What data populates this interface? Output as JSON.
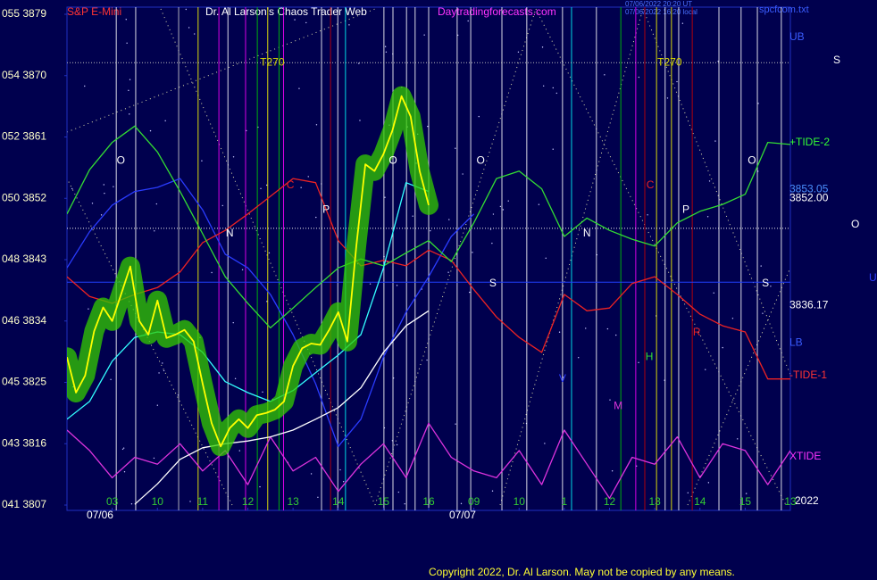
{
  "chart_data": {
    "type": "line",
    "symbol": "S&P E-Mini",
    "title": "Dr. Al Larson's Chaos Trader Web",
    "site": "Daytradingforecasts.com",
    "timestamps": [
      "07/06/2022 20:20 UT",
      "07/06/2022 16:20 local"
    ],
    "file": "spcfcom.txt",
    "copyright": "Copyright 2022, Dr. Al Larson. May not be copied by any means.",
    "year_label": "2022",
    "xlim": [
      0,
      16
    ],
    "ylim": [
      3807,
      3879
    ],
    "yticks": [
      {
        "value": 3879,
        "label": "055 3879"
      },
      {
        "value": 3870,
        "label": "054 3870"
      },
      {
        "value": 3861,
        "label": "052 3861"
      },
      {
        "value": 3852,
        "label": "050 3852"
      },
      {
        "value": 3843,
        "label": "048 3843"
      },
      {
        "value": 3834,
        "label": "046 3834"
      },
      {
        "value": 3825,
        "label": "045 3825"
      },
      {
        "value": 3816,
        "label": "043 3816"
      },
      {
        "value": 3807,
        "label": "041 3807"
      }
    ],
    "xticks": [
      {
        "value": 1,
        "label": "03"
      },
      {
        "value": 2,
        "label": "10"
      },
      {
        "value": 3,
        "label": "11"
      },
      {
        "value": 4,
        "label": "12"
      },
      {
        "value": 5,
        "label": "13"
      },
      {
        "value": 6,
        "label": "14"
      },
      {
        "value": 7,
        "label": "15"
      },
      {
        "value": 8,
        "label": "16"
      },
      {
        "value": 9,
        "label": "09"
      },
      {
        "value": 10,
        "label": "10"
      },
      {
        "value": 11,
        "label": "1"
      },
      {
        "value": 12,
        "label": "12"
      },
      {
        "value": 13,
        "label": "13"
      },
      {
        "value": 14,
        "label": "14"
      },
      {
        "value": 15,
        "label": "15"
      },
      {
        "value": 16,
        "label": "13"
      }
    ],
    "dates": [
      {
        "text": "07/06",
        "x": 0.73
      },
      {
        "text": "07/07",
        "x": 8.75
      }
    ],
    "vlines": [
      {
        "x": 1.09,
        "color": "#ffffff"
      },
      {
        "x": 1.52,
        "color": "#ffffff"
      },
      {
        "x": 2.47,
        "color": "#cccccc"
      },
      {
        "x": 2.9,
        "color": "#ffff00"
      },
      {
        "x": 3.36,
        "color": "#ff00ff"
      },
      {
        "x": 3.56,
        "color": "#ffffff"
      },
      {
        "x": 3.95,
        "color": "#ff00ff"
      },
      {
        "x": 4.21,
        "color": "#00cc00"
      },
      {
        "x": 4.44,
        "color": "#ffff00"
      },
      {
        "x": 4.69,
        "color": "#00cc00"
      },
      {
        "x": 4.79,
        "color": "#ff00ff"
      },
      {
        "x": 5.63,
        "color": "#ffffff"
      },
      {
        "x": 5.83,
        "color": "#cc0000"
      },
      {
        "x": 5.99,
        "color": "#ffffff"
      },
      {
        "x": 6.16,
        "color": "#00ffff"
      },
      {
        "x": 7.01,
        "color": "#ffffff"
      },
      {
        "x": 7.21,
        "color": "#ffffff"
      },
      {
        "x": 7.51,
        "color": "#ffffff"
      },
      {
        "x": 7.7,
        "color": "#ffffff"
      },
      {
        "x": 8.0,
        "color": "#ffffff"
      },
      {
        "x": 8.63,
        "color": "#ffffff"
      },
      {
        "x": 8.93,
        "color": "#ffffff"
      },
      {
        "x": 9.62,
        "color": "#ffffff"
      },
      {
        "x": 10.17,
        "color": "#ffffff"
      },
      {
        "x": 10.96,
        "color": "#ffffff"
      },
      {
        "x": 11.16,
        "color": "#00ffff"
      },
      {
        "x": 11.71,
        "color": "#ffffff"
      },
      {
        "x": 12.25,
        "color": "#00cc00"
      },
      {
        "x": 12.58,
        "color": "#ff00ff"
      },
      {
        "x": 12.78,
        "color": "#cc0000"
      },
      {
        "x": 13.04,
        "color": "#ffff00"
      },
      {
        "x": 13.23,
        "color": "#ffffff"
      },
      {
        "x": 13.37,
        "color": "#ffff00"
      },
      {
        "x": 13.53,
        "color": "#ffffff"
      },
      {
        "x": 13.83,
        "color": "#cc0000"
      },
      {
        "x": 14.42,
        "color": "#ffffff"
      },
      {
        "x": 14.91,
        "color": "#ffffff"
      },
      {
        "x": 15.27,
        "color": "#ffffff"
      },
      {
        "x": 15.8,
        "color": "#ffffff"
      }
    ],
    "hlines": [
      {
        "value": 3871.9,
        "color": "#bbbbbb",
        "dotted": true
      },
      {
        "value": 3847.6,
        "color": "#eeeeee",
        "dotted": true
      },
      {
        "value": 3839.7,
        "color": "#2040ff",
        "dotted": false
      }
    ],
    "series": [
      {
        "color": "#2a3cff",
        "x": [
          0,
          0.5,
          1,
          1.5,
          2,
          2.5,
          3,
          3.5,
          4,
          4.5,
          5,
          5.5,
          6,
          6.5,
          7,
          7.5,
          8,
          8.5,
          9
        ],
        "values": [
          3841.8,
          3847.1,
          3851.0,
          3853.0,
          3853.6,
          3854.9,
          3850.3,
          3843.8,
          3841.8,
          3837.9,
          3832.0,
          3824.8,
          3815.6,
          3819.6,
          3828.7,
          3835.3,
          3840.5,
          3846.4,
          3849.7
        ]
      },
      {
        "color": "#ee2222",
        "x": [
          0,
          0.5,
          1,
          1.5,
          2,
          2.5,
          3,
          3.5,
          4,
          4.5,
          5,
          5.5,
          6,
          6.5,
          7,
          7.5,
          8,
          8.5,
          9,
          9.5,
          10,
          10.5,
          11,
          11.5,
          12,
          12.5,
          13,
          13.5,
          14,
          14.5,
          15,
          15.5,
          16
        ],
        "values": [
          3840.5,
          3837.6,
          3836.6,
          3837.9,
          3838.9,
          3841.2,
          3845.5,
          3847.3,
          3849.7,
          3852.3,
          3854.9,
          3854.3,
          3845.8,
          3842.1,
          3842.9,
          3842.1,
          3844.4,
          3842.9,
          3838.6,
          3834.6,
          3831.6,
          3829.4,
          3837.9,
          3835.5,
          3835.9,
          3839.5,
          3840.5,
          3837.9,
          3835.0,
          3833.3,
          3832.4,
          3825.5,
          3825.5
        ]
      },
      {
        "color": "#33dd33",
        "x": [
          0,
          0.5,
          1,
          1.5,
          2,
          2.5,
          3,
          3.5,
          4,
          4.5,
          5,
          5.5,
          6,
          6.5,
          7,
          7.5,
          8,
          8.5,
          9,
          9.5,
          10,
          10.5,
          11,
          11.5,
          12,
          12.5,
          13,
          13.5,
          14,
          14.5,
          15,
          15.5,
          16
        ],
        "values": [
          3849.7,
          3856.2,
          3860.2,
          3862.6,
          3858.8,
          3853.0,
          3846.8,
          3840.5,
          3836.6,
          3833.0,
          3835.9,
          3838.9,
          3841.8,
          3843.1,
          3842.1,
          3844.0,
          3845.8,
          3842.7,
          3848.4,
          3854.9,
          3856.0,
          3853.4,
          3846.4,
          3849.1,
          3847.3,
          3846.0,
          3845.0,
          3848.4,
          3850.1,
          3851.1,
          3852.6,
          3860.2,
          3859.9
        ]
      },
      {
        "color": "#dd33dd",
        "x": [
          0,
          0.5,
          1,
          1.5,
          2,
          2.5,
          3,
          3.5,
          4,
          4.5,
          5,
          5.5,
          6,
          6.5,
          7,
          7.5,
          8,
          8.5,
          9,
          9.5,
          10,
          10.5,
          11,
          11.5,
          12,
          12.5,
          13,
          13.5,
          14,
          14.5,
          15,
          15.5,
          16
        ],
        "values": [
          3818,
          3815,
          3811,
          3814,
          3813,
          3816,
          3812,
          3815,
          3810,
          3817,
          3812,
          3814,
          3809,
          3813,
          3816,
          3811,
          3819,
          3814,
          3812,
          3811,
          3815,
          3810,
          3818,
          3813,
          3808,
          3814,
          3813,
          3817,
          3811,
          3816,
          3815,
          3810,
          3815
        ]
      },
      {
        "color": "#ffffff",
        "x": [
          1.5,
          2,
          2.5,
          3,
          3.5,
          4,
          4.5,
          5,
          5.5,
          6,
          6.5,
          7,
          7.5,
          8
        ],
        "values": [
          3807.1,
          3810.1,
          3813.7,
          3815.4,
          3816.0,
          3816.4,
          3817.0,
          3818.0,
          3819.6,
          3821.3,
          3824.2,
          3829.4,
          3833.3,
          3835.5
        ]
      },
      {
        "color": "#33ffff",
        "x": [
          0,
          0.5,
          1,
          1.5,
          2,
          2.5,
          3,
          3.5,
          4,
          4.5,
          5,
          5.5,
          6,
          6.5,
          7,
          7.5,
          8
        ],
        "values": [
          3819.6,
          3822.2,
          3828.1,
          3831.6,
          3832.4,
          3832.0,
          3829.4,
          3825.1,
          3823.5,
          3822.2,
          3823.8,
          3826.4,
          3829.0,
          3832.0,
          3841.8,
          3854.3,
          3853.0
        ]
      },
      {
        "color": "#ffff00",
        "glow": true,
        "x": [
          0,
          0.2,
          0.4,
          0.6,
          0.8,
          1,
          1.2,
          1.4,
          1.6,
          1.8,
          2,
          2.2,
          2.4,
          2.6,
          2.8,
          3,
          3.2,
          3.4,
          3.6,
          3.8,
          4,
          4.2,
          4.4,
          4.6,
          4.8,
          5,
          5.2,
          5.4,
          5.6,
          5.8,
          6,
          6.2,
          6.4,
          6.6,
          6.8,
          7,
          7.2,
          7.4,
          7.6,
          7.8,
          8
        ],
        "values": [
          3828.7,
          3823.5,
          3826,
          3832.5,
          3836,
          3834,
          3838,
          3842,
          3834,
          3832,
          3837,
          3831.5,
          3832,
          3832.7,
          3831,
          3824.8,
          3819,
          3815.6,
          3818.3,
          3819.6,
          3818.3,
          3820.2,
          3820.5,
          3821,
          3822.2,
          3827.4,
          3830,
          3830.7,
          3830.5,
          3832.7,
          3835.3,
          3831,
          3845,
          3857,
          3856,
          3858.5,
          3862,
          3867,
          3864,
          3856,
          3851
        ]
      }
    ],
    "annotations": [
      {
        "text": "T270",
        "x": 4.54,
        "y": 3871.9,
        "color": "#dddd00"
      },
      {
        "text": "T270",
        "x": 13.33,
        "y": 3871.9,
        "color": "#dddd00"
      },
      {
        "text": "O",
        "x": 1.19,
        "y": 3857.5,
        "color": "#ffffff"
      },
      {
        "text": "O",
        "x": 7.21,
        "y": 3857.5,
        "color": "#ffffff"
      },
      {
        "text": "O",
        "x": 9.15,
        "y": 3857.5,
        "color": "#ffffff"
      },
      {
        "text": "O",
        "x": 15.15,
        "y": 3857.5,
        "color": "#ffffff"
      },
      {
        "text": "N",
        "x": 3.6,
        "y": 3846.8,
        "color": "#ffffff"
      },
      {
        "text": "N",
        "x": 11.5,
        "y": 3846.8,
        "color": "#ffffff"
      },
      {
        "text": "P",
        "x": 5.73,
        "y": 3850.3,
        "color": "#ffffff"
      },
      {
        "text": "P",
        "x": 13.69,
        "y": 3850.3,
        "color": "#ffffff"
      },
      {
        "text": "C",
        "x": 4.94,
        "y": 3853.9,
        "color": "#ee2222"
      },
      {
        "text": "C",
        "x": 12.9,
        "y": 3853.9,
        "color": "#ee2222"
      },
      {
        "text": "S",
        "x": 9.42,
        "y": 3839.5,
        "color": "#ffffff"
      },
      {
        "text": "S",
        "x": 15.45,
        "y": 3839.5,
        "color": "#ffffff"
      },
      {
        "text": "R",
        "x": 13.93,
        "y": 3832.3,
        "color": "#ee2222"
      },
      {
        "text": "H",
        "x": 12.88,
        "y": 3828.7,
        "color": "#33dd33"
      },
      {
        "text": "M",
        "x": 12.19,
        "y": 3821.5,
        "color": "#dd33dd"
      },
      {
        "text": "V",
        "x": 10.96,
        "y": 3825.5,
        "color": "#2a3cff"
      }
    ],
    "right_labels": [
      {
        "text": "UB",
        "y": 3875.6,
        "color": "#3a5cff"
      },
      {
        "text": "+TIDE-2",
        "y": 3860.2,
        "color": "#33ff33"
      },
      {
        "text": "3853.05",
        "y": 3853.3,
        "color": "#4a90ff"
      },
      {
        "text": "3852.00",
        "y": 3852.0,
        "color": "#ffffff"
      },
      {
        "text": "3836.17",
        "y": 3836.3,
        "color": "#ffffff"
      },
      {
        "text": "LB",
        "y": 3830.8,
        "color": "#3a5cff"
      },
      {
        "text": "-TIDE-1",
        "y": 3826.0,
        "color": "#ff3333"
      },
      {
        "text": "XTIDE",
        "y": 3814.1,
        "color": "#ff33ff"
      }
    ],
    "far_right_labels": [
      {
        "text": "S",
        "y": 3872.2,
        "color": "#ffffff"
      },
      {
        "text": "O",
        "y": 3848.1,
        "color": "#ffffff"
      },
      {
        "text": "U",
        "y": 3840.3,
        "color": "#2a3cff"
      }
    ]
  }
}
